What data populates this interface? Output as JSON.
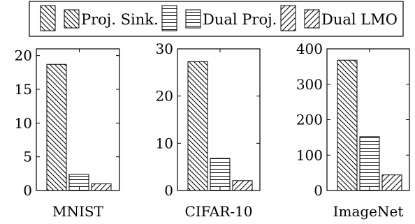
{
  "legend": {
    "placement": "top-center",
    "entries": [
      {
        "label": "Proj. Sink.",
        "pattern": "diag-right"
      },
      {
        "label": "Dual Proj.",
        "pattern": "horizontal"
      },
      {
        "label": "Dual LMO",
        "pattern": "diag-left-sparse"
      }
    ]
  },
  "chart_data": [
    {
      "type": "bar",
      "xlabel": "MNIST",
      "ylabel": "",
      "ylim": [
        0,
        21
      ],
      "yticks": [
        0,
        5,
        10,
        15,
        20
      ],
      "ytick_labels": [
        "0",
        "5",
        "10",
        "15",
        "20"
      ],
      "grid": false,
      "series": [
        {
          "name": "Proj. Sink.",
          "values": [
            18.7
          ]
        },
        {
          "name": "Dual Proj.",
          "values": [
            2.4
          ]
        },
        {
          "name": "Dual LMO",
          "values": [
            1.0
          ]
        }
      ]
    },
    {
      "type": "bar",
      "xlabel": "CIFAR-10",
      "ylabel": "",
      "ylim": [
        0,
        30
      ],
      "yticks": [
        0,
        10,
        20,
        30
      ],
      "ytick_labels": [
        "0",
        "10",
        "20",
        "30"
      ],
      "grid": false,
      "series": [
        {
          "name": "Proj. Sink.",
          "values": [
            27.3
          ]
        },
        {
          "name": "Dual Proj.",
          "values": [
            6.8
          ]
        },
        {
          "name": "Dual LMO",
          "values": [
            2.1
          ]
        }
      ]
    },
    {
      "type": "bar",
      "xlabel": "ImageNet",
      "ylabel": "",
      "ylim": [
        0,
        400
      ],
      "yticks": [
        0,
        100,
        200,
        300,
        400
      ],
      "ytick_labels": [
        "0",
        "100",
        "200",
        "300",
        "400"
      ],
      "grid": false,
      "series": [
        {
          "name": "Proj. Sink.",
          "values": [
            368
          ]
        },
        {
          "name": "Dual Proj.",
          "values": [
            152
          ]
        },
        {
          "name": "Dual LMO",
          "values": [
            44
          ]
        }
      ]
    }
  ]
}
